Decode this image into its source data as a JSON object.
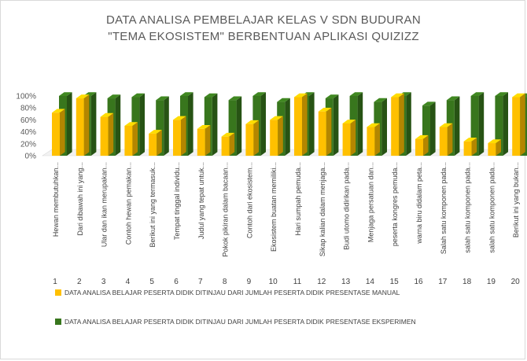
{
  "colors": {
    "manual": "#FFC000",
    "eksperimen": "#38761D"
  },
  "chart_data": {
    "type": "bar",
    "title_line1": "DATA ANALISA PEMBELAJAR KELAS V SDN BUDURAN",
    "title_line2": "\"TEMA EKOSISTEM\" BERBENTUAN APLIKASI QUIZIZZ",
    "ylim": [
      0,
      100
    ],
    "y_ticks": [
      "0%",
      "20%",
      "40%",
      "60%",
      "80%",
      "100%"
    ],
    "categories": [
      "Hewan membutuhkan...",
      "Dari dibawah ini yang...",
      "Ular dan ikan merupakan...",
      "Contoh hewan pemakan...",
      "Berikut ini yang termasuk...",
      "Tempat tinggal individu...",
      "Judul yang tepat untuk...",
      "Pokok pikiran dalam bacaan...",
      "Contoh dari ekosistem...",
      "Ekosistem buatan memiliki...",
      "Hari sumpah pemuda...",
      "Sikap kalian dalam menjaga...",
      "Budi utomo didirikan pada...",
      "Menjaga persatuan dan...",
      "peserta kongres pemuda...",
      "warna biru didalam peta...",
      "Salah satu komponen pada...",
      "salah satu komponen pada...",
      "salah satu komponen pada...",
      "Berikut ini yang bukan..."
    ],
    "numbers": [
      "1",
      "2",
      "3",
      "4",
      "5",
      "6",
      "7",
      "8",
      "9",
      "10",
      "11",
      "12",
      "13",
      "14",
      "15",
      "16",
      "17",
      "18",
      "19",
      "20"
    ],
    "series": [
      {
        "name": "DATA ANALISA BELAJAR PESERTA DIDIK DITINJAU DARI JUMLAH PESERTA DIDIK  PRESENTASE MANUAL",
        "values": [
          72,
          96,
          65,
          50,
          37,
          60,
          45,
          32,
          53,
          60,
          98,
          74,
          54,
          48,
          98,
          28,
          48,
          24,
          21,
          98
        ]
      },
      {
        "name": "DATA ANALISA BELAJAR PESERTA DIDIK DITINJAU DARI JUMLAH PESERTA DIDIK  PRESENTASE EKSPERIMEN",
        "values": [
          100,
          100,
          96,
          98,
          93,
          100,
          98,
          93,
          100,
          90,
          100,
          96,
          100,
          90,
          100,
          84,
          93,
          100,
          100,
          98
        ]
      }
    ],
    "grid": false,
    "legend_position": "bottom"
  }
}
